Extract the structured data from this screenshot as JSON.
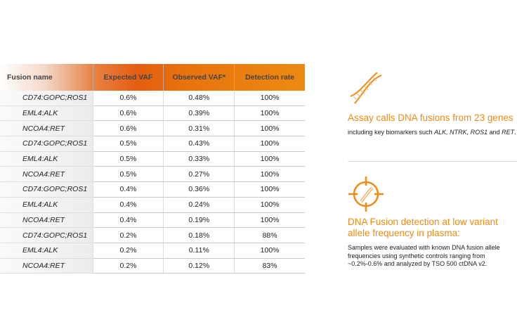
{
  "table": {
    "headers": [
      "Fusion name",
      "Expected VAF",
      "Observed VAF*",
      "Detection rate"
    ],
    "rows": [
      [
        "CD74:GOPC;ROS1",
        "0.6%",
        "0.48%",
        "100%"
      ],
      [
        "EML4:ALK",
        "0.6%",
        "0.39%",
        "100%"
      ],
      [
        "NCOA4:RET",
        "0.6%",
        "0.31%",
        "100%"
      ],
      [
        "CD74:GOPC;ROS1",
        "0.5%",
        "0.43%",
        "100%"
      ],
      [
        "EML4:ALK",
        "0.5%",
        "0.33%",
        "100%"
      ],
      [
        "NCOA4:RET",
        "0.5%",
        "0.27%",
        "100%"
      ],
      [
        "CD74:GOPC;ROS1",
        "0.4%",
        "0.36%",
        "100%"
      ],
      [
        "EML4:ALK",
        "0.4%",
        "0.24%",
        "100%"
      ],
      [
        "NCOA4:RET",
        "0.4%",
        "0.19%",
        "100%"
      ],
      [
        "CD74:GOPC;ROS1",
        "0.2%",
        "0.18%",
        "88%"
      ],
      [
        "EML4:ALK",
        "0.2%",
        "0.11%",
        "100%"
      ],
      [
        "NCOA4:RET",
        "0.2%",
        "0.12%",
        "83%"
      ]
    ]
  },
  "panel1": {
    "icon": "dna-helix-icon",
    "title": "Assay calls DNA fusions from 23 genes",
    "text_pre": "including key biomarkers such ",
    "text_genes": "ALK, NTRK, ROS1",
    "text_and": " and ",
    "text_ret": "RET",
    "text_end": "."
  },
  "panel2": {
    "icon": "dna-target-icon",
    "title": "DNA Fusion detection at low variant allele frequency in plasma:",
    "text": "Samples were evaluated with known DNA fusion allele frequencies using synthetic controls ranging from ~0.2%-0.6% and analyzed by TSO 500 ctDNA v2."
  },
  "colors": {
    "accent": "#f08a10",
    "header": "#e45d0f"
  }
}
